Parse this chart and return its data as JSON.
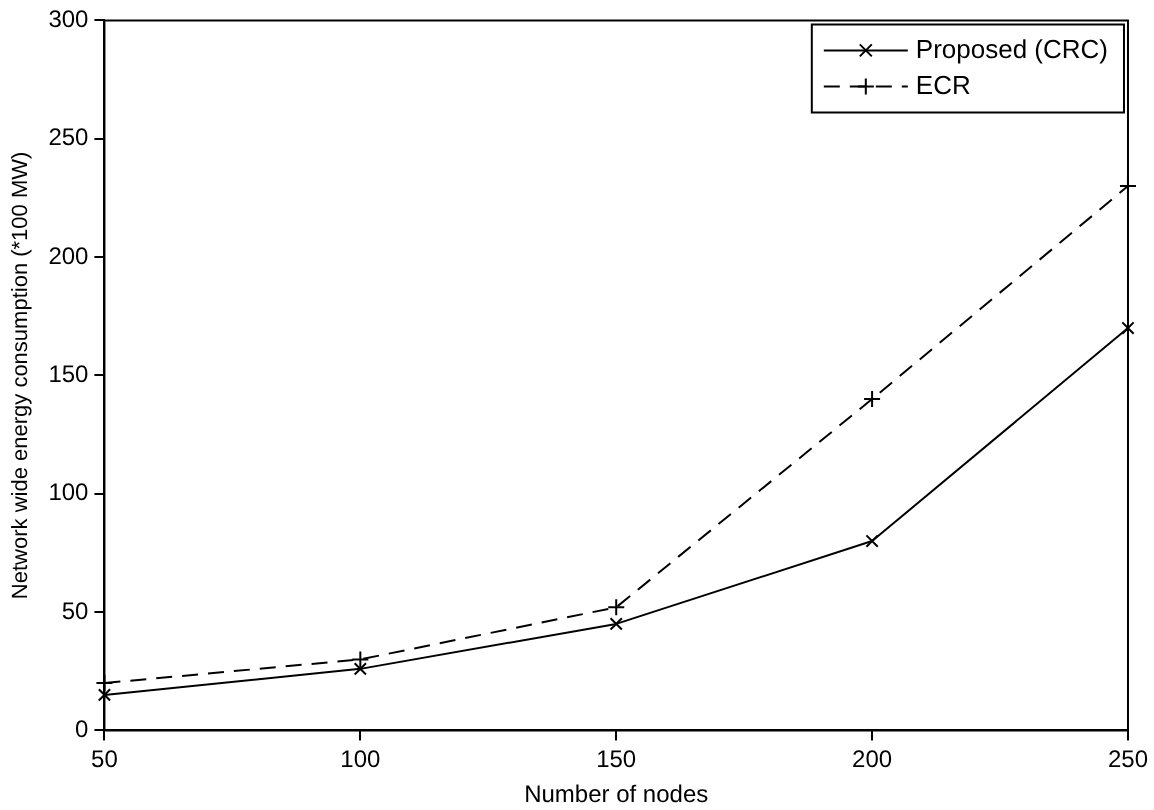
{
  "chart_data": {
    "type": "line",
    "xlabel": "Number of nodes",
    "ylabel": "Network wide energy consumption (*100 MW)",
    "x": [
      50,
      100,
      150,
      200,
      250
    ],
    "series": [
      {
        "name": "Proposed (CRC)",
        "color": "#000000",
        "values": [
          15,
          26,
          45,
          80,
          170
        ],
        "marker": "cross",
        "line_style": "solid"
      },
      {
        "name": "ECR",
        "color": "#000000",
        "values": [
          20,
          30,
          52,
          140,
          230
        ],
        "marker": "plus",
        "line_style": "dashed"
      }
    ],
    "xlim": [
      50,
      250
    ],
    "xticks": [
      50,
      100,
      150,
      200,
      250
    ],
    "ylim": [
      0,
      300
    ],
    "yticks": [
      0,
      50,
      100,
      150,
      200,
      250,
      300
    ],
    "grid": false,
    "legend": "top right"
  }
}
